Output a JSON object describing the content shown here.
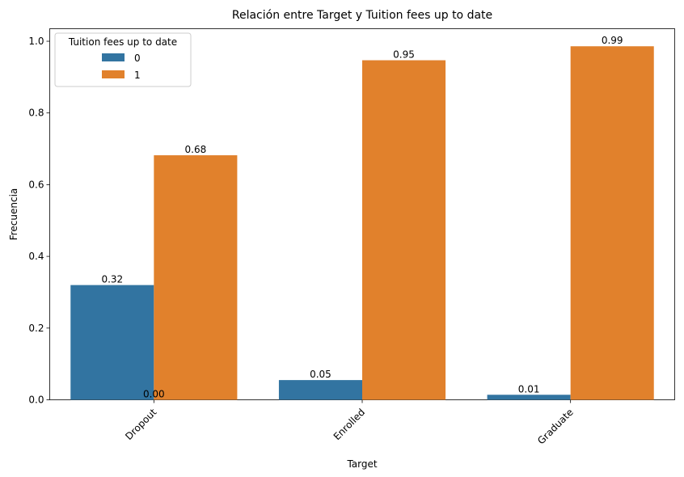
{
  "chart_data": {
    "type": "bar",
    "title": "Relación entre Target y Tuition fees up to date",
    "xlabel": "Target",
    "ylabel": "Frecuencia",
    "categories": [
      "Dropout",
      "Enrolled",
      "Graduate"
    ],
    "series": [
      {
        "name": "0",
        "color": "#3274a1",
        "values": [
          0.32,
          0.055,
          0.014
        ]
      },
      {
        "name": "1",
        "color": "#e1812c",
        "values": [
          0.682,
          0.947,
          0.986
        ]
      }
    ],
    "bar_labels": [
      [
        "0.32",
        "0.05",
        "0.01"
      ],
      [
        "0.68",
        "0.95",
        "0.99"
      ]
    ],
    "extra_label": "0.00",
    "legend": {
      "title": "Tuition fees up to date",
      "placement": "top-left"
    },
    "yticks": [
      "0.0",
      "0.2",
      "0.4",
      "0.6",
      "0.8",
      "1.0"
    ],
    "ylim": [
      0,
      1.035
    ],
    "grid": false
  }
}
